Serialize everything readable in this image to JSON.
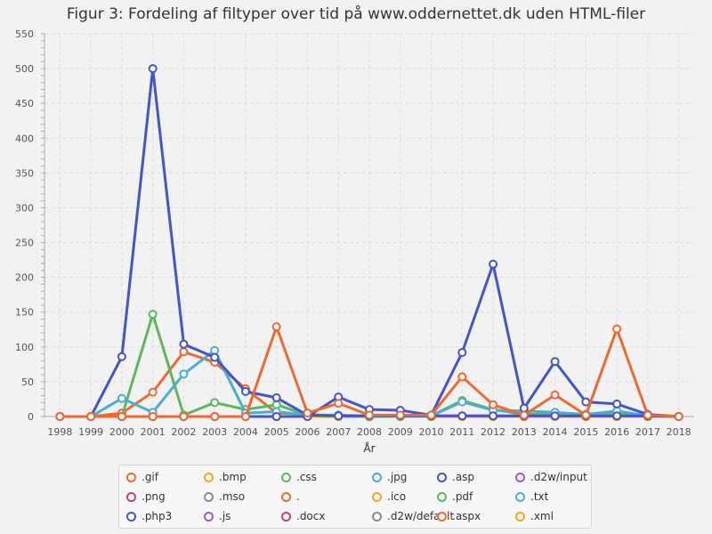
{
  "chart_data": {
    "type": "line",
    "title": "Figur 3: Fordeling af filtyper over tid på www.oddernettet.dk uden HTML-filer",
    "xlabel": "År",
    "ylabel": "",
    "x": [
      "1998",
      "1999",
      "2000",
      "2001",
      "2002",
      "2003",
      "2004",
      "2005",
      "2006",
      "2007",
      "2008",
      "2009",
      "2010",
      "2011",
      "2012",
      "2013",
      "2014",
      "2015",
      "2016",
      "2017",
      "2018"
    ],
    "ylim": [
      0,
      550
    ],
    "yticks": [
      0,
      50,
      100,
      150,
      200,
      250,
      300,
      350,
      400,
      450,
      500,
      550
    ],
    "grid": true,
    "legend_position": "bottom",
    "series": [
      {
        "name": ".gif",
        "color": "#ef6a32",
        "values": [
          0,
          0,
          5,
          35,
          93,
          78,
          40,
          5,
          3,
          1,
          1,
          1,
          1,
          1,
          1,
          1,
          1,
          1,
          1,
          1,
          0
        ]
      },
      {
        "name": ".bmp",
        "color": "#f2a81d",
        "values": [
          0,
          0,
          0,
          0,
          0,
          0,
          0,
          0,
          0,
          0,
          0,
          0,
          0,
          0,
          0,
          0,
          0,
          0,
          0,
          0,
          0
        ]
      },
      {
        "name": ".css",
        "color": "#5cb85c",
        "values": [
          0,
          0,
          0,
          147,
          2,
          20,
          10,
          17,
          2,
          1,
          0,
          1,
          1,
          23,
          10,
          3,
          4,
          3,
          4,
          1,
          0
        ]
      },
      {
        "name": ".jpg",
        "color": "#4aaed0",
        "values": [
          0,
          0,
          26,
          6,
          61,
          95,
          5,
          7,
          2,
          2,
          1,
          1,
          1,
          21,
          9,
          8,
          6,
          3,
          8,
          1,
          0
        ]
      },
      {
        "name": ".asp",
        "color": "#4356c4",
        "values": [
          0,
          0,
          86,
          500,
          104,
          85,
          36,
          27,
          2,
          1,
          1,
          1,
          1,
          1,
          1,
          1,
          1,
          1,
          1,
          1,
          0
        ]
      },
      {
        "name": ".d2w/input",
        "color": "#9b59d0",
        "values": [
          0,
          0,
          0,
          0,
          0,
          0,
          0,
          0,
          0,
          0,
          0,
          0,
          0,
          0,
          0,
          0,
          0,
          0,
          0,
          0,
          0
        ]
      },
      {
        "name": ".png",
        "color": "#c9406a",
        "values": [
          0,
          0,
          0,
          0,
          0,
          0,
          0,
          0,
          0,
          0,
          0,
          0,
          0,
          0,
          0,
          0,
          0,
          0,
          0,
          0,
          0
        ]
      },
      {
        "name": ".mso",
        "color": "#8a8a8a",
        "values": [
          0,
          0,
          0,
          0,
          0,
          0,
          0,
          0,
          0,
          0,
          0,
          0,
          0,
          0,
          0,
          0,
          0,
          0,
          0,
          0,
          0
        ]
      },
      {
        "name": ".",
        "color": "#ef6a32",
        "values": [
          0,
          0,
          0,
          0,
          0,
          0,
          0,
          0,
          0,
          0,
          0,
          0,
          0,
          0,
          0,
          0,
          0,
          0,
          0,
          0,
          0
        ]
      },
      {
        "name": ".ico",
        "color": "#f2a81d",
        "values": [
          0,
          0,
          0,
          0,
          0,
          0,
          0,
          0,
          0,
          0,
          0,
          0,
          0,
          0,
          0,
          0,
          0,
          0,
          0,
          0,
          0
        ]
      },
      {
        "name": ".pdf",
        "color": "#5cb85c",
        "values": [
          0,
          0,
          0,
          0,
          0,
          0,
          0,
          0,
          0,
          0,
          0,
          0,
          0,
          0,
          0,
          0,
          0,
          0,
          0,
          0,
          0
        ]
      },
      {
        "name": ".txt",
        "color": "#4aaed0",
        "values": [
          0,
          0,
          0,
          0,
          0,
          0,
          0,
          0,
          0,
          0,
          0,
          0,
          0,
          0,
          0,
          0,
          0,
          0,
          0,
          0,
          0
        ]
      },
      {
        "name": ".php3",
        "color": "#4356c4",
        "values": [
          0,
          0,
          0,
          0,
          0,
          0,
          0,
          0,
          0,
          28,
          10,
          9,
          2,
          92,
          219,
          12,
          79,
          21,
          18,
          3,
          0
        ]
      },
      {
        "name": ".js",
        "color": "#9b59d0",
        "values": [
          0,
          0,
          0,
          0,
          0,
          0,
          0,
          0,
          0,
          0,
          0,
          0,
          0,
          0,
          0,
          0,
          0,
          0,
          0,
          0,
          0
        ]
      },
      {
        "name": ".docx",
        "color": "#c9406a",
        "values": [
          0,
          0,
          0,
          0,
          0,
          0,
          0,
          0,
          0,
          0,
          0,
          0,
          0,
          0,
          0,
          0,
          0,
          0,
          0,
          0,
          0
        ]
      },
      {
        "name": ".d2w/default",
        "color": "#8a8a8a",
        "values": [
          0,
          0,
          0,
          0,
          0,
          0,
          0,
          0,
          0,
          0,
          0,
          0,
          0,
          0,
          0,
          0,
          0,
          0,
          0,
          0,
          0
        ]
      },
      {
        "name": ".aspx",
        "color": "#ef6a32",
        "values": [
          0,
          0,
          0,
          0,
          0,
          0,
          0,
          129,
          5,
          19,
          2,
          2,
          2,
          57,
          17,
          2,
          31,
          2,
          126,
          2,
          0
        ]
      },
      {
        "name": ".xml",
        "color": "#f2a81d",
        "values": [
          0,
          0,
          0,
          0,
          0,
          0,
          0,
          0,
          0,
          0,
          0,
          0,
          0,
          0,
          0,
          0,
          0,
          0,
          0,
          0,
          0
        ]
      }
    ]
  }
}
